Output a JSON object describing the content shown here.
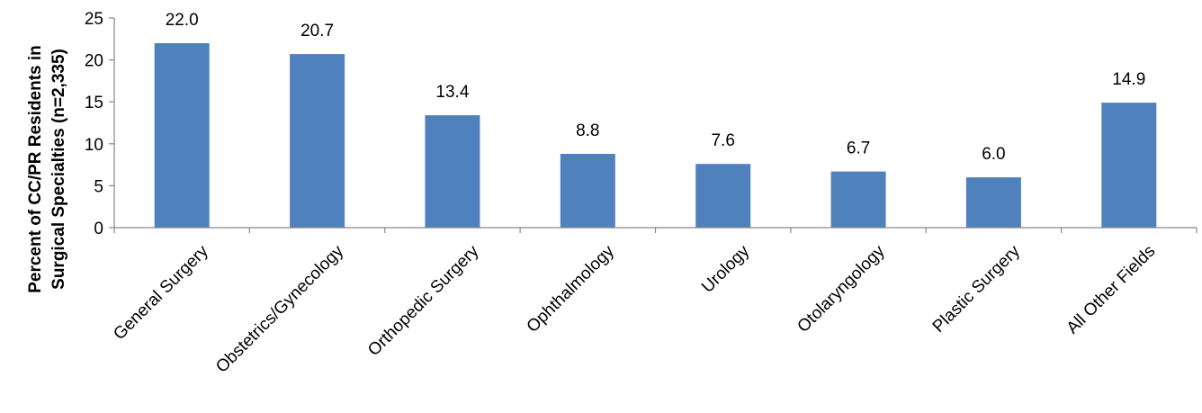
{
  "chart_data": {
    "type": "bar",
    "ylabel_lines": [
      "Percent of CC/PR Residents in",
      "Surgical Specialties (n=2,335)"
    ],
    "categories": [
      "General Surgery",
      "Obstetrics/Gynecology",
      "Orthopedic Surgery",
      "Ophthalmology",
      "Urology",
      "Otolaryngology",
      "Plastic Surgery",
      "All Other Fields"
    ],
    "values": [
      22.0,
      20.7,
      13.4,
      8.8,
      7.6,
      6.7,
      6.0,
      14.9
    ],
    "data_labels": [
      "22.0",
      "20.7",
      "13.4",
      "8.8",
      "7.6",
      "6.7",
      "6.0",
      "14.9"
    ],
    "ylim": [
      0,
      25
    ],
    "yticks": [
      0,
      5,
      10,
      15,
      20,
      25
    ],
    "bar_color": "#4F81BD",
    "grid": false,
    "legend": "none"
  }
}
